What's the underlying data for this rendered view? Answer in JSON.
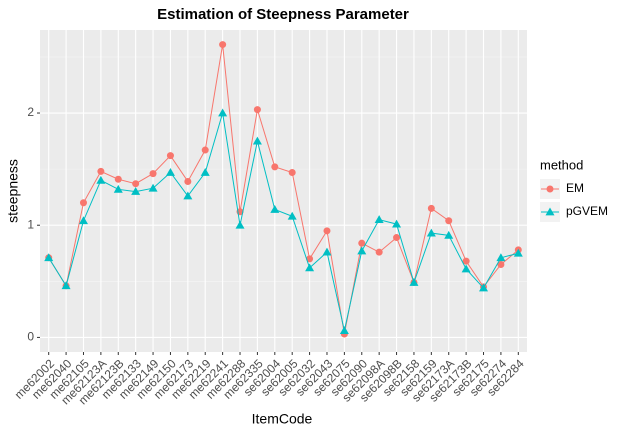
{
  "chart_data": {
    "type": "line",
    "title": "Estimation of Steepness Parameter",
    "x_label": "ItemCode",
    "y_label": "steepness",
    "legend_title": "method",
    "legend_position": "right",
    "grid": true,
    "categories": [
      "me62002",
      "me62040",
      "me62105",
      "me62123A",
      "me62123B",
      "me62133",
      "me62149",
      "me62150",
      "me62173",
      "me62219",
      "me62241",
      "me62288",
      "me62335",
      "se62004",
      "se62005",
      "se62032",
      "se62043",
      "se62075",
      "se62090",
      "se62098A",
      "se62098B",
      "se62158",
      "se62159",
      "se62173A",
      "se62173B",
      "se62175",
      "se62274",
      "se62284"
    ],
    "series": [
      {
        "name": "EM",
        "color": "#F8766D",
        "shape": "circle",
        "values": [
          0.71,
          0.46,
          1.2,
          1.48,
          1.41,
          1.37,
          1.46,
          1.62,
          1.39,
          1.67,
          2.61,
          1.12,
          2.03,
          1.52,
          1.47,
          0.7,
          0.95,
          0.03,
          0.84,
          0.76,
          0.89,
          0.49,
          1.15,
          1.04,
          0.68,
          0.45,
          0.65,
          0.78
        ]
      },
      {
        "name": "pGVEM",
        "color": "#00BFC4",
        "shape": "triangle",
        "values": [
          0.71,
          0.46,
          1.04,
          1.4,
          1.32,
          1.3,
          1.33,
          1.47,
          1.26,
          1.47,
          2.0,
          1.0,
          1.75,
          1.14,
          1.08,
          0.62,
          0.76,
          0.06,
          0.77,
          1.05,
          1.01,
          0.49,
          0.93,
          0.91,
          0.61,
          0.44,
          0.71,
          0.75
        ]
      }
    ],
    "ylim": [
      -0.13,
      2.74
    ],
    "yticks": [
      0,
      1,
      2
    ]
  }
}
